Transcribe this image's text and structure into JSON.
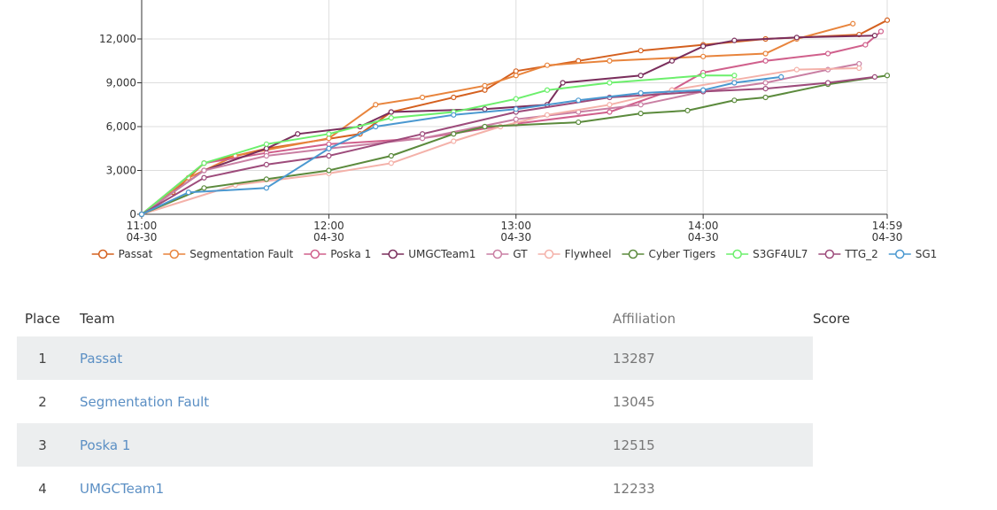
{
  "chart_data": {
    "type": "line",
    "xlim": [
      "11:00",
      "14:59"
    ],
    "xticks": [
      {
        "value": "11:00",
        "label": "11:00",
        "date": "04-30"
      },
      {
        "value": "12:00",
        "label": "12:00",
        "date": "04-30"
      },
      {
        "value": "13:00",
        "label": "13:00",
        "date": "04-30"
      },
      {
        "value": "14:00",
        "label": "14:00",
        "date": "04-30"
      },
      {
        "value": "14:59",
        "label": "14:59",
        "date": "04-30"
      }
    ],
    "ylim": [
      0,
      14000
    ],
    "yticks": [
      0,
      {
        "value": 3000,
        "label": "3,000"
      },
      {
        "value": 6000,
        "label": "6,000"
      },
      {
        "value": 9000,
        "label": "9,000"
      },
      {
        "value": 12000,
        "label": "12,000"
      }
    ],
    "grid": true,
    "series": [
      {
        "name": "Passat",
        "color": "#d4601f",
        "x": [
          "11:00",
          "11:10",
          "11:20",
          "11:40",
          "12:10",
          "12:20",
          "12:40",
          "12:50",
          "13:00",
          "13:20",
          "13:40",
          "14:00",
          "14:20",
          "14:50",
          "14:59"
        ],
        "values": [
          0,
          1500,
          3500,
          4500,
          5500,
          7000,
          8000,
          8500,
          9800,
          10500,
          11200,
          11600,
          12000,
          12300,
          13287
        ]
      },
      {
        "name": "Segmentation Fault",
        "color": "#e8843c",
        "x": [
          "11:00",
          "11:15",
          "11:30",
          "12:00",
          "12:15",
          "12:30",
          "12:50",
          "13:00",
          "13:10",
          "13:30",
          "14:00",
          "14:20",
          "14:30",
          "14:48"
        ],
        "values": [
          0,
          2500,
          4000,
          5200,
          7500,
          8000,
          8800,
          9500,
          10200,
          10500,
          10800,
          11000,
          12000,
          13045
        ]
      },
      {
        "name": "Poska 1",
        "color": "#d0608c",
        "x": [
          "11:00",
          "11:20",
          "11:40",
          "12:00",
          "12:30",
          "13:00",
          "13:30",
          "13:50",
          "14:00",
          "14:20",
          "14:40",
          "14:52",
          "14:57"
        ],
        "values": [
          0,
          3500,
          4200,
          4800,
          5200,
          6200,
          7000,
          8500,
          9700,
          10500,
          11000,
          11600,
          12515
        ]
      },
      {
        "name": "UMGCTeam1",
        "color": "#7a2e5c",
        "x": [
          "11:00",
          "11:20",
          "11:40",
          "11:50",
          "12:10",
          "12:20",
          "12:50",
          "13:10",
          "13:15",
          "13:40",
          "13:50",
          "14:00",
          "14:10",
          "14:30",
          "14:55"
        ],
        "values": [
          0,
          3000,
          4500,
          5500,
          6000,
          7000,
          7200,
          7500,
          9000,
          9500,
          10500,
          11500,
          11900,
          12100,
          12233
        ]
      },
      {
        "name": "GT",
        "color": "#c97fa3",
        "x": [
          "11:00",
          "11:20",
          "11:40",
          "12:00",
          "12:30",
          "13:00",
          "13:20",
          "13:40",
          "14:00",
          "14:20",
          "14:40",
          "14:50"
        ],
        "values": [
          0,
          3000,
          4000,
          4500,
          5200,
          6500,
          7000,
          7500,
          8400,
          9000,
          9900,
          10300
        ]
      },
      {
        "name": "Flywheel",
        "color": "#f4b1a9",
        "x": [
          "11:00",
          "11:30",
          "12:00",
          "12:20",
          "12:40",
          "12:55",
          "13:10",
          "13:30",
          "13:50",
          "14:10",
          "14:30",
          "14:50"
        ],
        "values": [
          0,
          2000,
          2800,
          3500,
          5000,
          6000,
          6800,
          7500,
          8500,
          9200,
          9900,
          10000
        ]
      },
      {
        "name": "Cyber Tigers",
        "color": "#5b8a3c",
        "x": [
          "11:00",
          "11:20",
          "11:40",
          "12:00",
          "12:20",
          "12:40",
          "12:50",
          "13:20",
          "13:40",
          "13:55",
          "14:10",
          "14:20",
          "14:40",
          "14:59"
        ],
        "values": [
          0,
          1800,
          2400,
          3000,
          4000,
          5500,
          6000,
          6300,
          6900,
          7100,
          7800,
          8000,
          8900,
          9500
        ]
      },
      {
        "name": "S3GF4UL7",
        "color": "#6cef6c",
        "x": [
          "11:00",
          "11:20",
          "11:40",
          "12:00",
          "12:20",
          "12:40",
          "13:00",
          "13:10",
          "13:30",
          "14:00",
          "14:10"
        ],
        "values": [
          0,
          3500,
          4800,
          5500,
          6600,
          7000,
          7900,
          8500,
          9000,
          9500,
          9500
        ]
      },
      {
        "name": "TTG_2",
        "color": "#9d4b7b",
        "x": [
          "11:00",
          "11:20",
          "11:40",
          "12:00",
          "12:30",
          "13:00",
          "13:30",
          "14:00",
          "14:20",
          "14:40",
          "14:55"
        ],
        "values": [
          0,
          2500,
          3400,
          4000,
          5500,
          7000,
          8000,
          8400,
          8600,
          9000,
          9400
        ]
      },
      {
        "name": "SG1",
        "color": "#4a98d0",
        "x": [
          "11:00",
          "11:15",
          "11:40",
          "12:00",
          "12:15",
          "12:40",
          "13:00",
          "13:20",
          "13:40",
          "14:00",
          "14:10",
          "14:25"
        ],
        "values": [
          0,
          1500,
          1800,
          4500,
          6000,
          6800,
          7200,
          7800,
          8300,
          8500,
          9000,
          9400
        ]
      }
    ]
  },
  "table": {
    "headers": [
      "Place",
      "Team",
      "Affiliation",
      "Score"
    ],
    "rows": [
      [
        1,
        "Passat",
        13287
      ],
      [
        2,
        "Segmentation Fault",
        13045
      ],
      [
        3,
        "Poska 1",
        12515
      ],
      [
        4,
        "UMGCTeam1",
        12233
      ]
    ]
  }
}
